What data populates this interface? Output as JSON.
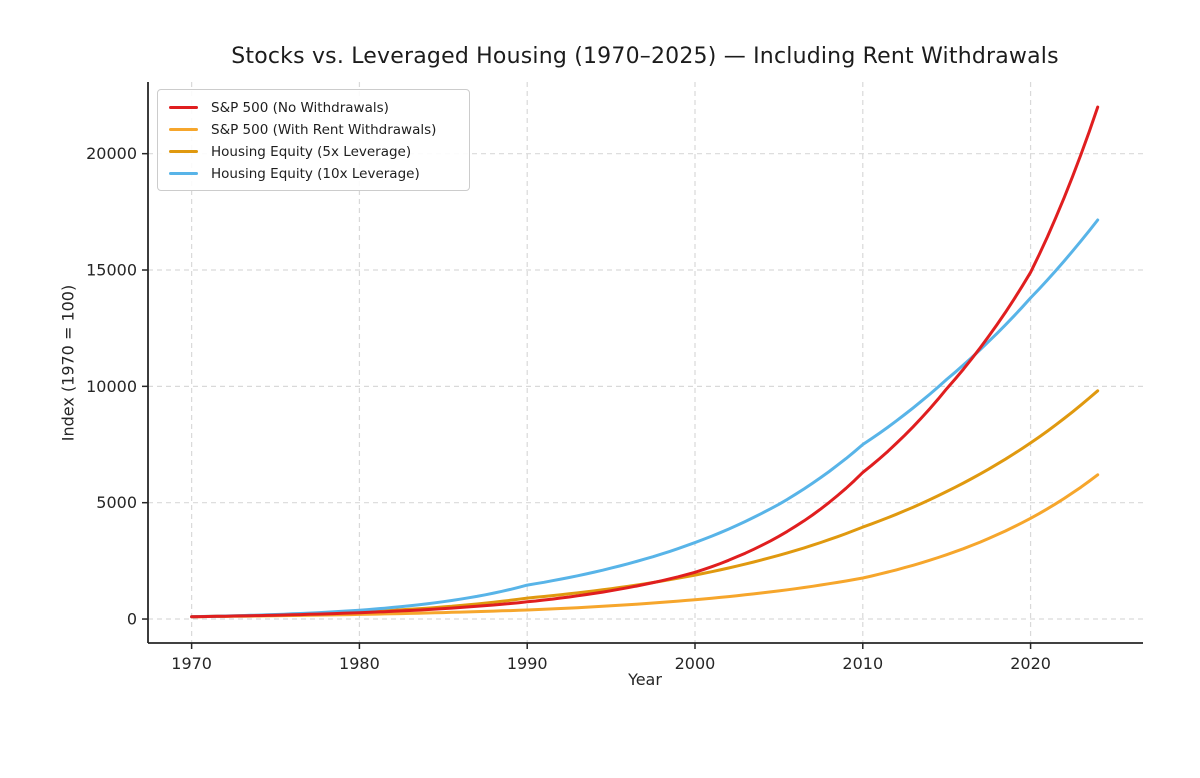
{
  "chart_data": {
    "type": "line",
    "title": "Stocks vs. Leveraged Housing (1970–2025) — Including Rent Withdrawals",
    "xlabel": "Year",
    "ylabel": "Index (1970 = 100)",
    "x": [
      1970,
      1975,
      1980,
      1985,
      1990,
      1995,
      2000,
      2005,
      2010,
      2015,
      2020,
      2024
    ],
    "series": [
      {
        "name": "S&P 500 (No Withdrawals)",
        "color": "#e01e1f",
        "zorder": 4,
        "values": [
          100,
          165,
          272,
          448,
          739,
          1218,
          2008,
          3557,
          6300,
          9900,
          14900,
          22000
        ]
      },
      {
        "name": "S&P 500 (With Rent Withdrawals)",
        "color": "#f6a62c",
        "zorder": 1,
        "values": [
          100,
          141,
          198,
          278,
          390,
          569,
          830,
          1210,
          1765,
          2765,
          4330,
          6200
        ]
      },
      {
        "name": "Housing Equity (5x Leverage)",
        "color": "#e0990f",
        "zorder": 2,
        "values": [
          100,
          173,
          300,
          520,
          900,
          1305,
          1890,
          2740,
          3950,
          5480,
          7570,
          9810
        ]
      },
      {
        "name": "Housing Equity (10x Leverage)",
        "color": "#58b4e8",
        "zorder": 3,
        "values": [
          100,
          195,
          381,
          745,
          1457,
          2188,
          3285,
          4932,
          7500,
          10300,
          13800,
          17150
        ]
      }
    ],
    "x_ticks": [
      {
        "label": "1970",
        "value": 1970
      },
      {
        "label": "1980",
        "value": 1980
      },
      {
        "label": "1990",
        "value": 1990
      },
      {
        "label": "2000",
        "value": 2000
      },
      {
        "label": "2010",
        "value": 2010
      },
      {
        "label": "2020",
        "value": 2020
      }
    ],
    "y_ticks": [
      {
        "label": "0",
        "value": 0
      },
      {
        "label": "5000",
        "value": 5000
      },
      {
        "label": "10000",
        "value": 10000
      },
      {
        "label": "15000",
        "value": 15000
      },
      {
        "label": "20000",
        "value": 20000
      }
    ],
    "xlim": [
      1967.4,
      2026.7
    ],
    "ylim": [
      -1030,
      23080
    ],
    "grid": true,
    "grid_style": "dashed",
    "legend_position": "upper-left",
    "background": "#ffffff"
  }
}
